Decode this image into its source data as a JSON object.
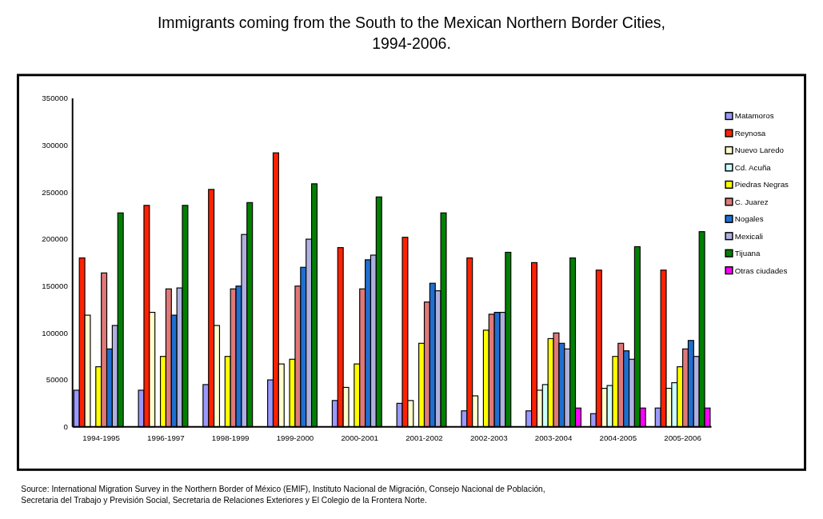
{
  "chart_data": {
    "type": "bar",
    "title": "Immigrants coming from the South to the Mexican Northern Border Cities,",
    "subtitle": "1994-2006.",
    "categories": [
      "1994-1995",
      "1996-1997",
      "1998-1999",
      "1999-2000",
      "2000-2001",
      "2001-2002",
      "2002-2003",
      "2003-2004",
      "2004-2005",
      "2005-2006"
    ],
    "series": [
      {
        "name": "Matamoros",
        "color": "#9999ff",
        "values": [
          39000,
          39000,
          45000,
          50000,
          28000,
          25000,
          17000,
          17000,
          14000,
          20000
        ]
      },
      {
        "name": "Reynosa",
        "color": "#ff2200",
        "values": [
          180000,
          236000,
          253000,
          292000,
          191000,
          202000,
          180000,
          175000,
          167000,
          167000
        ]
      },
      {
        "name": "Nuevo Laredo",
        "color": "#ffffcc",
        "values": [
          119000,
          122000,
          108000,
          67000,
          42000,
          28000,
          33000,
          39000,
          41000,
          41000
        ]
      },
      {
        "name": "Cd. Acuña",
        "color": "#ccffff",
        "values": [
          null,
          null,
          null,
          null,
          null,
          null,
          null,
          45000,
          44000,
          47000
        ]
      },
      {
        "name": "Piedras Negras",
        "color": "#ffff00",
        "values": [
          64000,
          75000,
          75000,
          72000,
          67000,
          89000,
          103000,
          94000,
          75000,
          64000
        ]
      },
      {
        "name": "C. Juarez",
        "color": "#e07878",
        "values": [
          164000,
          147000,
          147000,
          150000,
          147000,
          133000,
          120000,
          100000,
          89000,
          83000
        ]
      },
      {
        "name": "Nogales",
        "color": "#1f6fd0",
        "values": [
          83000,
          119000,
          150000,
          170000,
          178000,
          153000,
          122000,
          89000,
          81000,
          92000
        ]
      },
      {
        "name": "Mexicali",
        "color": "#b0b0e0",
        "values": [
          108000,
          148000,
          205000,
          200000,
          183000,
          145000,
          122000,
          83000,
          72000,
          75000
        ]
      },
      {
        "name": "Tijuana",
        "color": "#008000",
        "values": [
          228000,
          236000,
          239000,
          259000,
          245000,
          228000,
          186000,
          180000,
          192000,
          208000
        ]
      },
      {
        "name": "Otras ciudades",
        "color": "#ff00ff",
        "values": [
          null,
          null,
          null,
          null,
          null,
          null,
          null,
          20000,
          20000,
          20000
        ]
      }
    ],
    "ylim": [
      0,
      350000
    ],
    "yticks": [
      0,
      50000,
      100000,
      150000,
      200000,
      250000,
      300000,
      350000
    ],
    "legend": "right",
    "annotations": [
      "Source: International Migration Survey in the Northern Border of México (EMIF), Instituto Nacional de Migración, Consejo Nacional de Población,",
      "Secretaria del Trabajo y Previsión Social, Secretaria de Relaciones Exteriores y El Colegio de la Frontera Norte."
    ]
  }
}
